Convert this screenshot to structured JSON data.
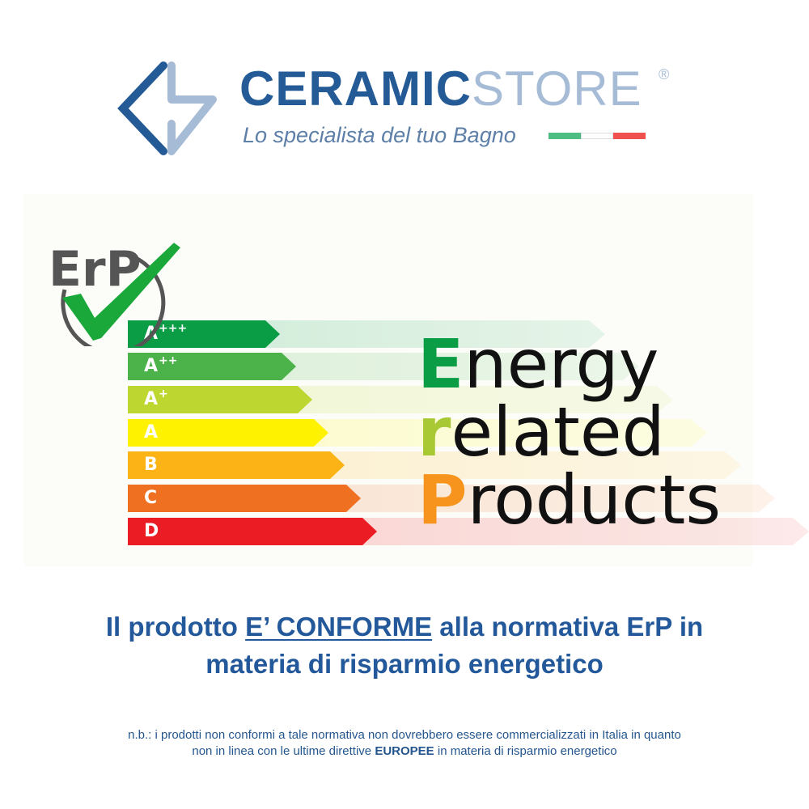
{
  "logo": {
    "brand_bold": "CERAMIC",
    "brand_light": "STORE",
    "registered": "®",
    "tagline": "Lo specialista del tuo Bagno",
    "colors": {
      "dark": "#245b96",
      "light": "#a6bcd6"
    },
    "flag_colors": [
      "#4dbd84",
      "#ffffff",
      "#f0514f"
    ]
  },
  "erp_badge": {
    "text": "ErP",
    "icon": "check-mark-icon",
    "check_color": "#1aa83a"
  },
  "energy_classes": [
    {
      "label": "A",
      "sup": "+++",
      "color": "#0b9c46"
    },
    {
      "label": "A",
      "sup": "++",
      "color": "#4bb34a"
    },
    {
      "label": "A",
      "sup": "+",
      "color": "#bed630"
    },
    {
      "label": "A",
      "sup": "",
      "color": "#fff200"
    },
    {
      "label": "B",
      "sup": "",
      "color": "#fbb316"
    },
    {
      "label": "C",
      "sup": "",
      "color": "#f07022"
    },
    {
      "label": "D",
      "sup": "",
      "color": "#ec1c24"
    }
  ],
  "erp_words": [
    {
      "first": "E",
      "rest": "nergy",
      "color": "#0b9c46"
    },
    {
      "first": "r",
      "rest": "elated",
      "color": "#a8c834"
    },
    {
      "first": "P",
      "rest": "roducts",
      "color": "#f7941d"
    }
  ],
  "headline": {
    "part1": "Il prodotto ",
    "underlined": "E’ CONFORME",
    "part2": " alla normativa ErP in",
    "line2": "materia di risparmio energetico"
  },
  "note": {
    "line1": "n.b.: i prodotti non conformi a tale normativa non dovrebbero essere commercializzati in Italia in quanto",
    "line2_a": "non in linea con le ultime direttive ",
    "line2_bold": "EUROPEE",
    "line2_b": " in materia di risparmio energetico"
  }
}
